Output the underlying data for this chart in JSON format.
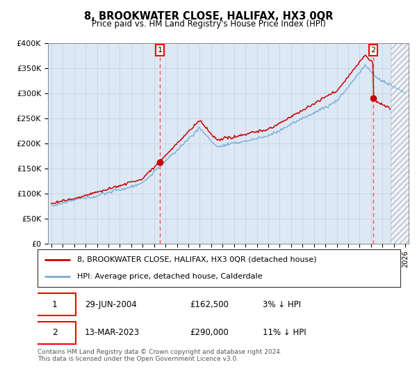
{
  "title": "8, BROOKWATER CLOSE, HALIFAX, HX3 0QR",
  "subtitle": "Price paid vs. HM Land Registry's House Price Index (HPI)",
  "legend_line1": "8, BROOKWATER CLOSE, HALIFAX, HX3 0QR (detached house)",
  "legend_line2": "HPI: Average price, detached house, Calderdale",
  "sale1_date": "29-JUN-2004",
  "sale1_price": "£162,500",
  "sale1_hpi": "3% ↓ HPI",
  "sale2_date": "13-MAR-2023",
  "sale2_price": "£290,000",
  "sale2_hpi": "11% ↓ HPI",
  "footer": "Contains HM Land Registry data © Crown copyright and database right 2024.\nThis data is licensed under the Open Government Licence v3.0.",
  "hpi_color": "#7aadd4",
  "price_color": "#cc0000",
  "marker_color": "#cc0000",
  "vline_color": "#ff5555",
  "background_color": "#dde8f5",
  "grid_color": "#c0cfe0",
  "ylim": [
    0,
    400000
  ],
  "yticks": [
    0,
    50000,
    100000,
    150000,
    200000,
    250000,
    300000,
    350000,
    400000
  ],
  "ytick_labels": [
    "£0",
    "£50K",
    "£100K",
    "£150K",
    "£200K",
    "£250K",
    "£300K",
    "£350K",
    "£400K"
  ],
  "sale1_x": 2004.5,
  "sale1_y": 162500,
  "sale2_x": 2023.2,
  "sale2_y": 290000,
  "xmin": 1994.7,
  "xmax": 2026.3,
  "hatch_start": 2024.7
}
